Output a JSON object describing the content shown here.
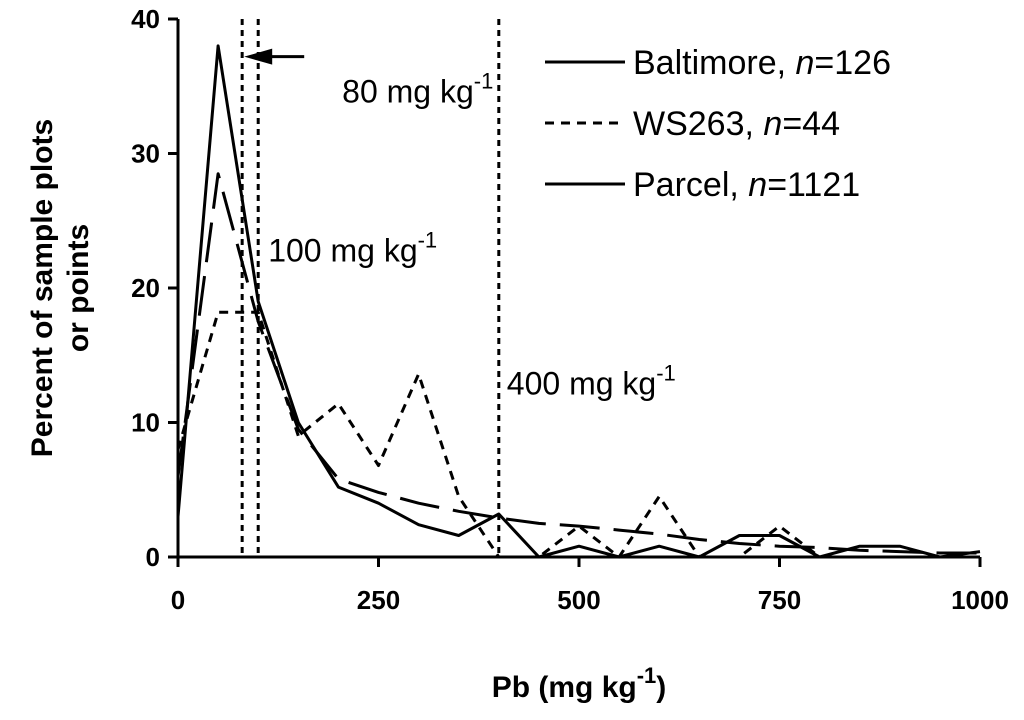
{
  "chart_data": {
    "type": "line",
    "xlabel": "Pb (mg kg",
    "xlabel_sup": "-1",
    "xlabel_close": ")",
    "ylabel_line1": "Percent of sample plots",
    "ylabel_line2": "or points",
    "xlim": [
      0,
      1000
    ],
    "ylim": [
      0,
      40
    ],
    "xticks": [
      0,
      250,
      500,
      750,
      1000
    ],
    "yticks": [
      0,
      10,
      20,
      30,
      40
    ],
    "x_tick_labels": [
      "0",
      "250",
      "500",
      "750",
      "1000"
    ],
    "y_tick_labels": [
      "0",
      "10",
      "20",
      "30",
      "40"
    ],
    "grid": false,
    "legend_position": "top-right",
    "series": [
      {
        "name": "Baltimore, ",
        "n_label": "n",
        "n_value": "=126",
        "style": "solid",
        "width": 3,
        "x": [
          0,
          50,
          100,
          150,
          200,
          250,
          300,
          350,
          400,
          450,
          500,
          550,
          600,
          650,
          700,
          750,
          800,
          850,
          900,
          950,
          1000
        ],
        "y": [
          3,
          38,
          19,
          10,
          5.2,
          4,
          2.4,
          1.6,
          3.2,
          0,
          0.8,
          0,
          0.8,
          0,
          1.6,
          1.6,
          0,
          0.8,
          0.8,
          0,
          0.4
        ]
      },
      {
        "name": "WS263, ",
        "n_label": "n",
        "n_value": "=44",
        "style": "dashed-short",
        "width": 3,
        "x": [
          0,
          50,
          75,
          100,
          150,
          200,
          250,
          300,
          350,
          400,
          450,
          500,
          550,
          600,
          650,
          700,
          750,
          800,
          850,
          900,
          950,
          1000
        ],
        "y": [
          8,
          18.2,
          18.2,
          18.2,
          9,
          11.4,
          6.8,
          13.6,
          4.5,
          0,
          0,
          2.3,
          0,
          4.5,
          0,
          0,
          2.3,
          0,
          0,
          0,
          0,
          0
        ]
      },
      {
        "name": "Parcel, ",
        "n_label": "n",
        "n_value": "=1121",
        "style": "dashed-long",
        "width": 3,
        "x": [
          0,
          50,
          100,
          150,
          200,
          250,
          300,
          350,
          400,
          450,
          500,
          550,
          600,
          650,
          700,
          750,
          800,
          850,
          900,
          950,
          1000
        ],
        "y": [
          6,
          28.5,
          17.5,
          9.5,
          5.8,
          4.8,
          4,
          3.4,
          2.9,
          2.5,
          2.3,
          2,
          1.7,
          1.3,
          1,
          0.8,
          0.7,
          0.5,
          0.4,
          0.3,
          0.3
        ]
      }
    ],
    "vlines": [
      {
        "x": 80,
        "style": "dotted"
      },
      {
        "x": 100,
        "style": "dotted"
      },
      {
        "x": 400,
        "style": "dotted"
      }
    ],
    "annotations": [
      {
        "text": "80 mg kg",
        "sup": "-1",
        "x": 80,
        "y": 37.2
      },
      {
        "text": "100 mg kg",
        "sup": "-1",
        "x": 100,
        "y": 23.6
      },
      {
        "text": "400 mg kg",
        "sup": "-1",
        "x": 400,
        "y": 13.7
      }
    ]
  }
}
